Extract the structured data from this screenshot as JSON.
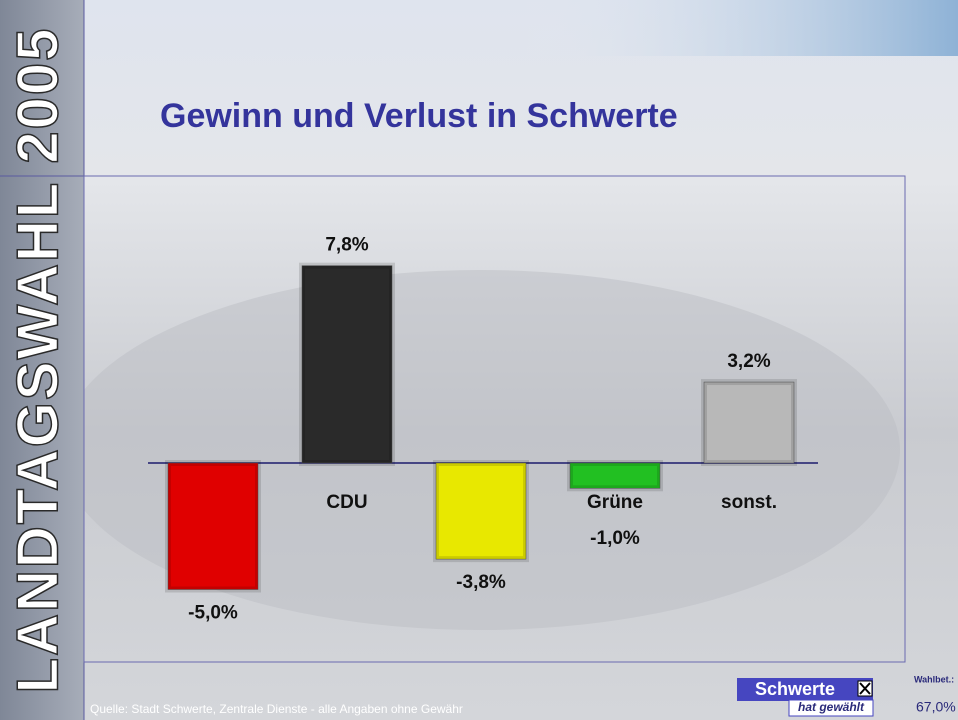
{
  "chart_data": {
    "type": "bar",
    "title": "Gewinn und Verlust in Schwerte",
    "side_title": "LANDTAGSWAHL 2005",
    "categories": [
      null,
      "CDU",
      null,
      "Grüne",
      "sonst."
    ],
    "values": [
      -5.0,
      7.8,
      -3.8,
      -1.0,
      3.2
    ],
    "value_labels": [
      "-5,0%",
      "7,8%",
      "-3,8%",
      "-1,0%",
      "3,2%"
    ],
    "colors": [
      "#e00000",
      "#2a2a2a",
      "#e8e800",
      "#22c022",
      "#b8b8b8"
    ],
    "source": "Quelle: Stadt Schwerte, Zentrale Dienste - alle Angaben ohne Gewähr",
    "badge": "Schwerte",
    "badge_sub": "hat gewählt",
    "turnout_label": "Wahlbet.:",
    "turnout": "67,0%"
  }
}
